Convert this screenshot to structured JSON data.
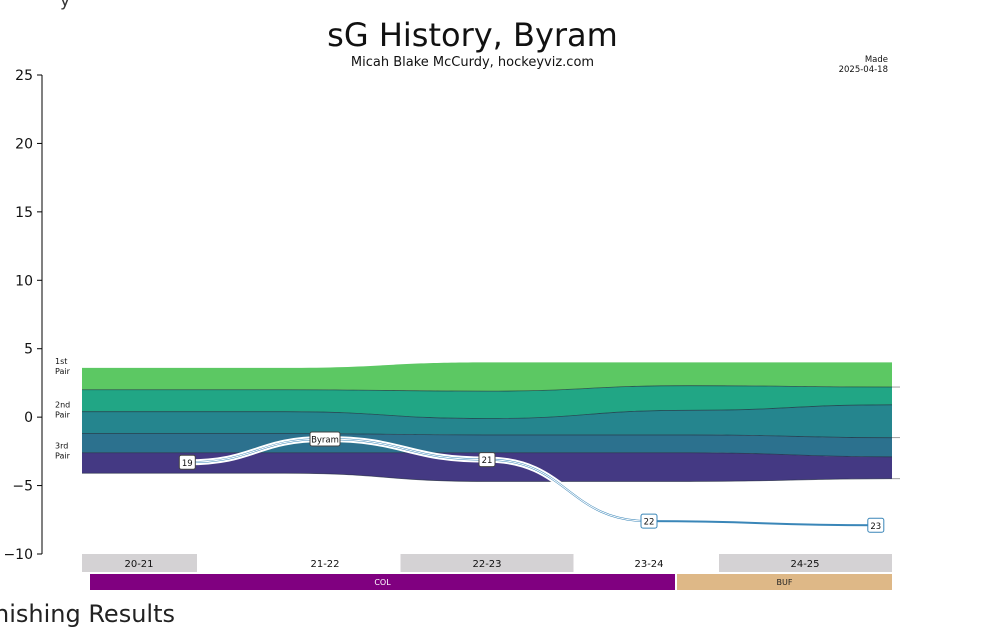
{
  "header": {
    "title": "sG History, Byram",
    "subtitle": "Micah Blake McCurdy, hockeyviz.com",
    "made_label": "Made",
    "made_date": "2025-04-18",
    "top_cut_text": "y",
    "bottom_cut_text": "nishing Results"
  },
  "chart_data": {
    "type": "area",
    "title": "sG History, Byram",
    "ylim": [
      -10,
      25
    ],
    "y_ticks": [
      "25",
      "20",
      "15",
      "10",
      "5",
      "0",
      "−5",
      "−10"
    ],
    "y_tick_values": [
      25,
      20,
      15,
      10,
      5,
      0,
      -5,
      -10
    ],
    "x": [
      0,
      1,
      2,
      3,
      4
    ],
    "band_boundaries": [
      {
        "name": "top",
        "values": [
          3.6,
          3.6,
          4.0,
          4.0,
          4.0
        ],
        "color": "#5cc863"
      },
      {
        "name": "1st/2nd",
        "values": [
          2.0,
          2.0,
          1.9,
          2.3,
          2.2
        ],
        "color": "#21a685"
      },
      {
        "name": "mid-2nd",
        "values": [
          0.4,
          0.4,
          -0.1,
          0.5,
          0.9
        ],
        "color": "#25858e"
      },
      {
        "name": "2nd/3rd",
        "values": [
          -1.2,
          -1.2,
          -1.3,
          -1.3,
          -1.5
        ],
        "color": "#2c718e"
      },
      {
        "name": "mid-3rd",
        "values": [
          -2.6,
          -2.6,
          -2.6,
          -2.6,
          -2.9
        ],
        "color": "#443983"
      },
      {
        "name": "bottom",
        "values": [
          -4.1,
          -4.1,
          -4.7,
          -4.7,
          -4.5
        ],
        "color": "#443983"
      }
    ],
    "pair_labels": [
      {
        "line1": "1st",
        "line2": "Pair",
        "y": 3.6
      },
      {
        "line1": "2nd",
        "line2": "Pair",
        "y": 0.4
      },
      {
        "line1": "3rd",
        "line2": "Pair",
        "y": -2.6
      }
    ],
    "player_line": {
      "name": "Byram",
      "color": "#3a86b8",
      "points": [
        {
          "x": 0.65,
          "y": -3.3,
          "label": "19"
        },
        {
          "x": 1.5,
          "y": -1.6,
          "label": "Byram"
        },
        {
          "x": 2.5,
          "y": -3.1,
          "label": "21"
        },
        {
          "x": 3.5,
          "y": -7.6,
          "label": "22"
        },
        {
          "x": 4.9,
          "y": -7.9,
          "label": "23"
        }
      ]
    },
    "seasons": [
      {
        "label": "20-21",
        "shaded": true
      },
      {
        "label": "21-22",
        "shaded": false
      },
      {
        "label": "22-23",
        "shaded": true
      },
      {
        "label": "23-24",
        "shaded": false
      },
      {
        "label": "24-25",
        "shaded": true
      }
    ],
    "teams": [
      {
        "label": "COL",
        "color": "#800080",
        "text_color": "#ffffff"
      },
      {
        "label": "BUF",
        "color": "#deb887",
        "text_color": "#222222"
      }
    ]
  }
}
